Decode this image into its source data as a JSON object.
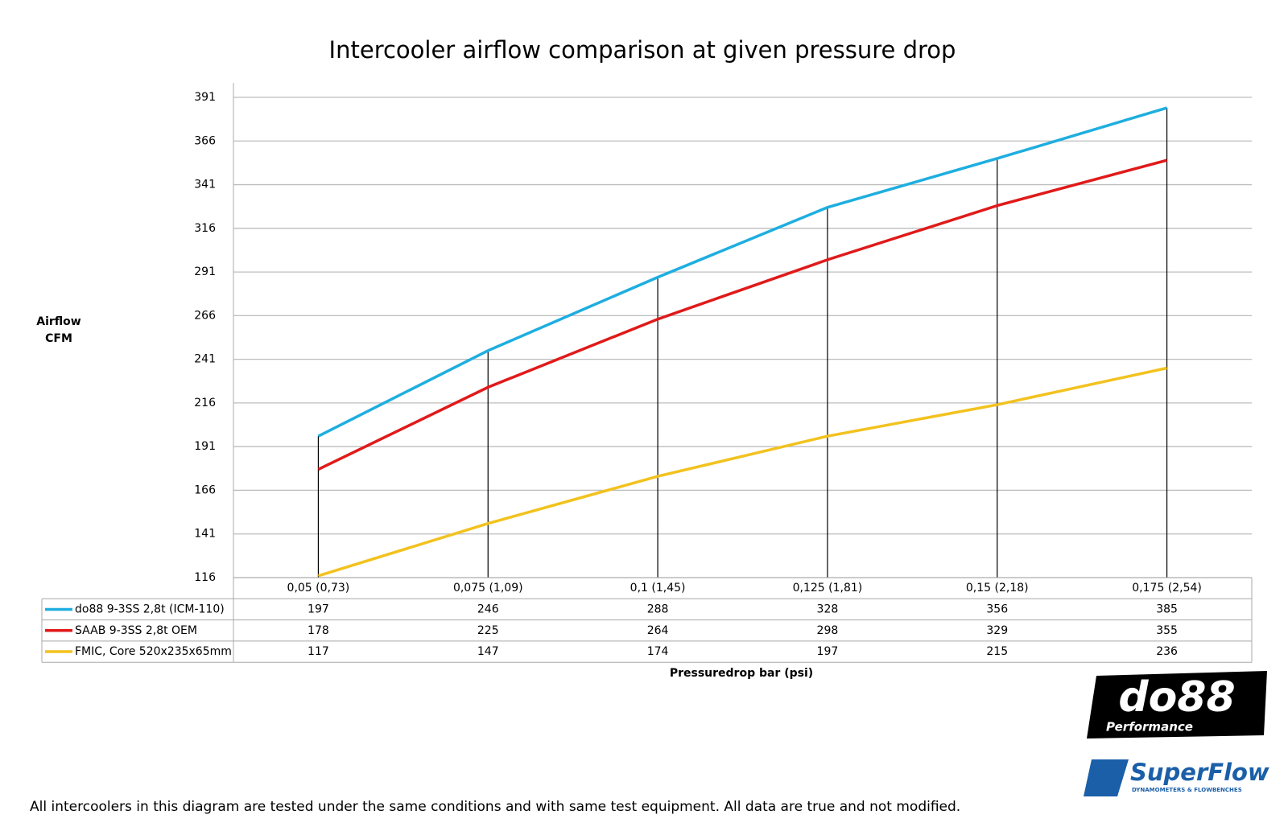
{
  "chart_data": {
    "type": "line",
    "title": "Intercooler airflow comparison at given pressure drop",
    "ylabel": [
      "Airflow",
      "CFM"
    ],
    "xlabel": "Pressuredrop bar (psi)",
    "categories": [
      "0,05 (0,73)",
      "0,075 (1,09)",
      "0,1 (1,45)",
      "0,125 (1,81)",
      "0,15 (2,18)",
      "0,175 (2,54)"
    ],
    "series": [
      {
        "name": "do88 9-3SS 2,8t (ICM-110)",
        "color": "#1eaee0",
        "values": [
          197,
          246,
          288,
          328,
          356,
          385
        ]
      },
      {
        "name": "SAAB 9-3SS 2,8t OEM",
        "color": "#e01a1a",
        "values": [
          178,
          225,
          264,
          298,
          329,
          355
        ]
      },
      {
        "name": "FMIC, Core 520x235x65mm",
        "color": "#f2c21e",
        "values": [
          117,
          147,
          174,
          197,
          215,
          236
        ]
      }
    ],
    "ylim": [
      116,
      391
    ],
    "yticks": [
      116,
      141,
      166,
      191,
      216,
      241,
      266,
      291,
      316,
      341,
      366,
      391
    ],
    "grid": true,
    "drop_lines": true,
    "data_table": true
  },
  "footnote": "All intercoolers in this diagram are tested under the same conditions and with same test equipment. All data are true and not modified.",
  "logos": {
    "do88": "do88",
    "do88_sub": "Performance",
    "superflow": "SuperFlow",
    "superflow_sub": "DYNAMOMETERS & FLOWBENCHES"
  }
}
